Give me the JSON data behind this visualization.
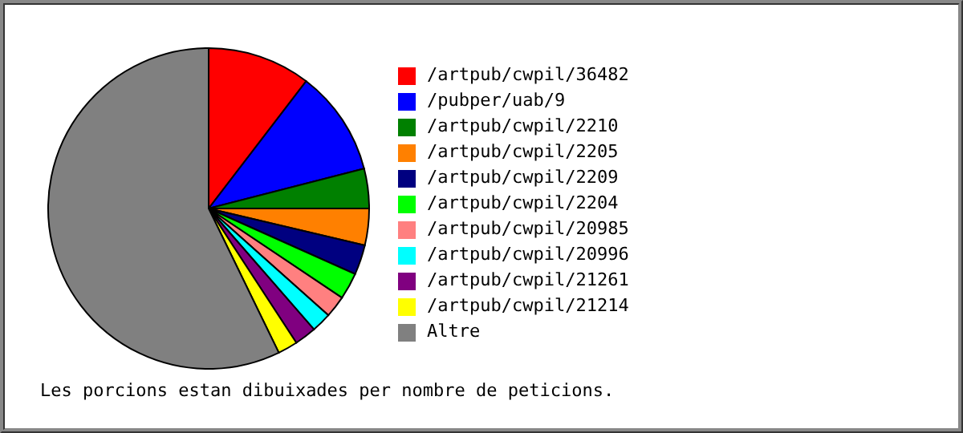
{
  "chart_data": {
    "type": "pie",
    "categories": [
      "/artpub/cwpil/36482",
      "/pubper/uab/9",
      "/artpub/cwpil/2210",
      "/artpub/cwpil/2205",
      "/artpub/cwpil/2209",
      "/artpub/cwpil/2204",
      "/artpub/cwpil/20985",
      "/artpub/cwpil/20996",
      "/artpub/cwpil/21261",
      "/artpub/cwpil/21214",
      "Altre"
    ],
    "values": [
      10.4,
      10.6,
      4.0,
      3.7,
      3.0,
      2.7,
      2.2,
      2.0,
      2.2,
      2.0,
      57.2
    ],
    "colors": [
      "#ff0000",
      "#0000ff",
      "#008000",
      "#ff8000",
      "#000080",
      "#00ff00",
      "#ff8080",
      "#00ffff",
      "#800080",
      "#ffff00",
      "#808080"
    ],
    "legend": "right",
    "annotations": [
      "Les porcions estan dibuixades per nombre de peticions."
    ]
  }
}
